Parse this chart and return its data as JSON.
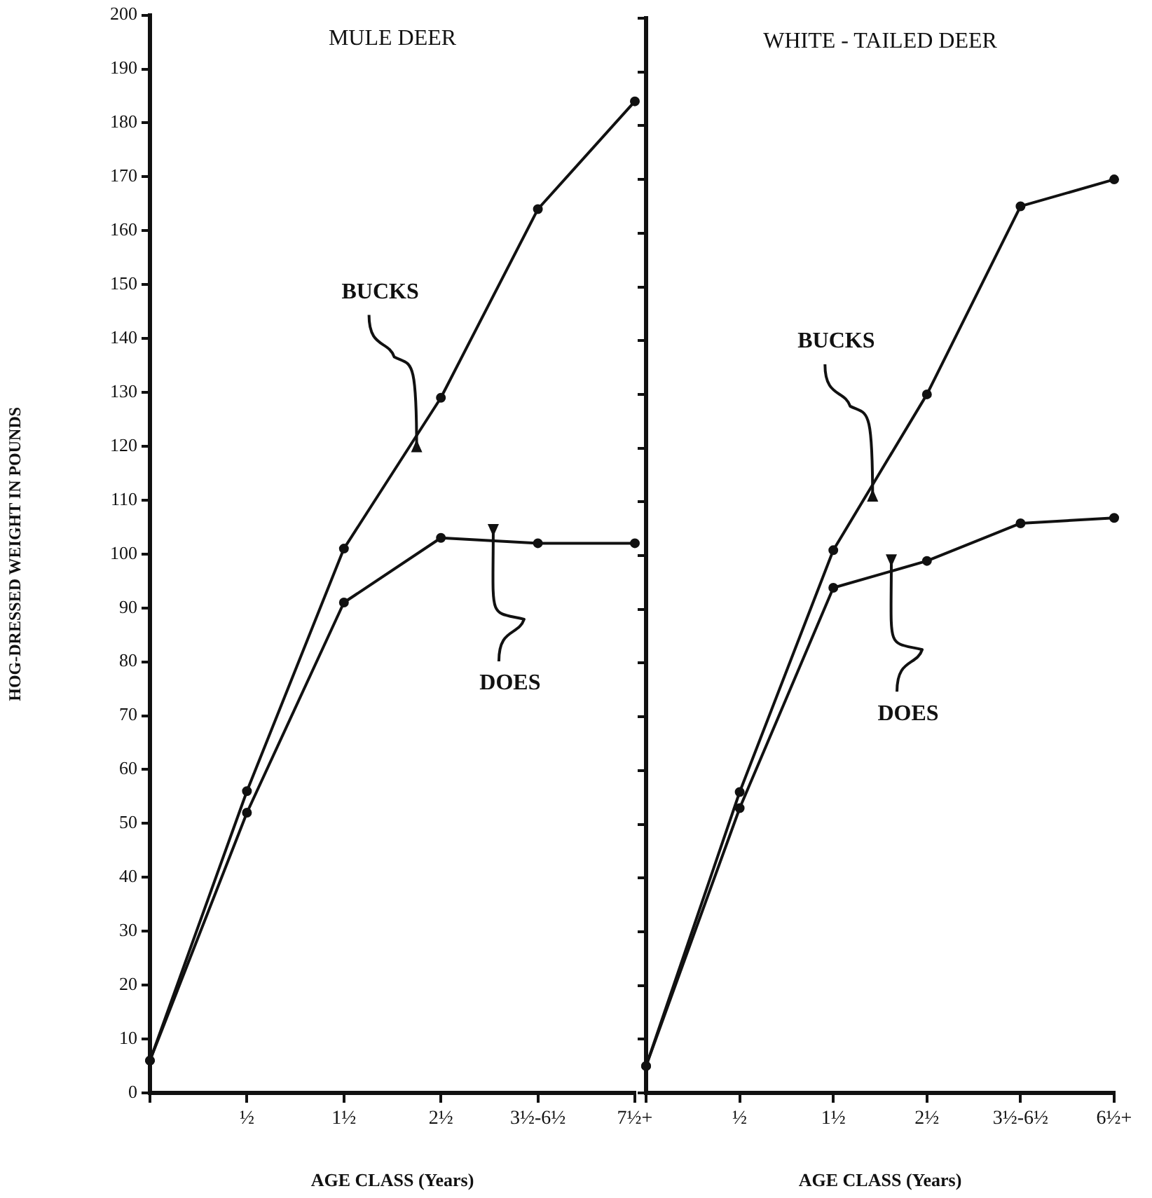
{
  "chart_data": [
    {
      "type": "line",
      "title": "MULE DEER",
      "xlabel": "AGE CLASS (Years)",
      "ylabel": "HOG-DRESSED WEIGHT IN POUNDS",
      "marker": "circle",
      "categories": [
        null,
        "½",
        "1½",
        "2½",
        "3½-6½",
        "7½+"
      ],
      "series": [
        {
          "color": "#111111",
          "values": [
            6,
            56,
            101,
            129,
            164,
            184
          ]
        },
        {
          "color": "#111111",
          "values": [
            6,
            52,
            91,
            103,
            102,
            102
          ]
        }
      ],
      "ylim": [
        0,
        200
      ],
      "yticks": [
        0,
        10,
        20,
        30,
        40,
        50,
        60,
        70,
        80,
        90,
        100,
        110,
        120,
        130,
        140,
        150,
        160,
        170,
        180,
        190,
        200
      ],
      "annotations": [
        "BUCKS",
        "DOES"
      ]
    },
    {
      "type": "line",
      "title": "WHITE - TAILED DEER",
      "xlabel": "AGE CLASS (Years)",
      "marker": "circle",
      "categories": [
        null,
        "½",
        "1½",
        "2½",
        "3½-6½",
        "6½+"
      ],
      "series": [
        {
          "color": "#111111",
          "values": [
            5,
            56,
            101,
            130,
            165,
            170
          ]
        },
        {
          "color": "#111111",
          "values": [
            5,
            53,
            94,
            99,
            106,
            107
          ]
        }
      ],
      "ylim": [
        0,
        200
      ],
      "yticks": [
        0,
        10,
        20,
        30,
        40,
        50,
        60,
        70,
        80,
        90,
        100,
        110,
        120,
        130,
        140,
        150,
        160,
        170,
        180,
        190,
        200
      ],
      "tick_labels": "x",
      "annotations": [
        "BUCKS",
        "DOES"
      ]
    }
  ]
}
